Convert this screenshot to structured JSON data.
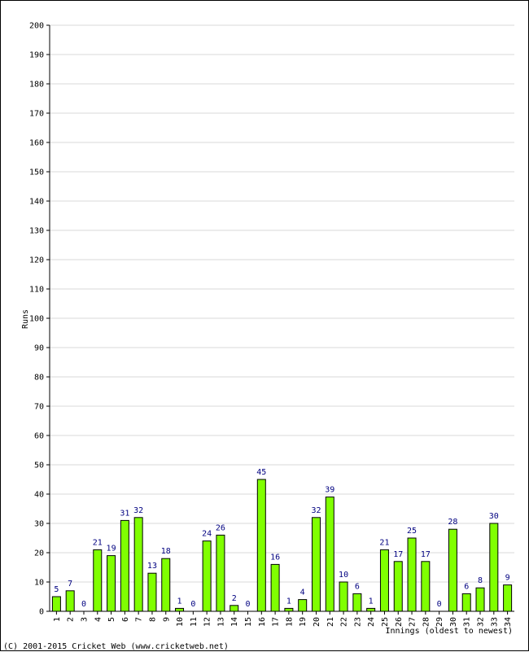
{
  "chart_data": {
    "type": "bar",
    "title": "",
    "xlabel": "Innings (oldest to newest)",
    "ylabel": "Runs",
    "ylim": [
      0,
      200
    ],
    "y_tick_step": 10,
    "grid": true,
    "categories": [
      "1",
      "2",
      "3",
      "4",
      "5",
      "6",
      "7",
      "8",
      "9",
      "10",
      "11",
      "12",
      "13",
      "14",
      "15",
      "16",
      "17",
      "18",
      "19",
      "20",
      "21",
      "22",
      "23",
      "24",
      "25",
      "26",
      "27",
      "28",
      "29",
      "30",
      "31",
      "32",
      "33",
      "34"
    ],
    "values": [
      5,
      7,
      0,
      21,
      19,
      31,
      32,
      13,
      18,
      1,
      0,
      24,
      26,
      2,
      0,
      45,
      16,
      1,
      4,
      32,
      39,
      10,
      6,
      1,
      21,
      17,
      25,
      17,
      0,
      28,
      6,
      8,
      30,
      9
    ],
    "colors": {
      "bar_fill": "#80ff00",
      "bar_stroke": "#000000",
      "grid": "#d8d8d8",
      "value_label": "#000080"
    }
  },
  "footer": {
    "copyright": "(C) 2001-2015 Cricket Web (www.cricketweb.net)"
  }
}
